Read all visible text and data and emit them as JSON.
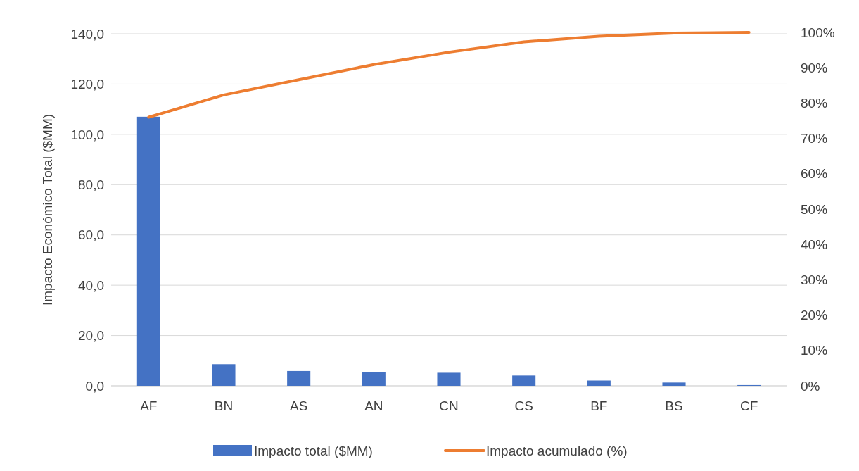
{
  "chart_data": {
    "type": "bar",
    "ylabel": "Impacto Económico Total ($MM)",
    "categories": [
      "AF",
      "BN",
      "AS",
      "AN",
      "CN",
      "CS",
      "BF",
      "BS",
      "CF"
    ],
    "series": [
      {
        "name": "Impacto total ($MM)",
        "color": "#4472c4",
        "values": [
          107,
          8.6,
          5.9,
          5.4,
          5.2,
          4.1,
          2.1,
          1.3,
          0.3
        ]
      },
      {
        "name": "Impacto acumulado (%)",
        "type": "line",
        "axis": "y2",
        "color": "#ed7d31",
        "values": [
          76,
          82.3,
          86.6,
          90.9,
          94.4,
          97.3,
          98.9,
          99.8,
          100
        ]
      }
    ],
    "ylim": [
      0,
      140
    ],
    "yticks": [
      {
        "value": 0,
        "label": "0,0"
      },
      {
        "value": 20,
        "label": "20,0"
      },
      {
        "value": 40,
        "label": "40,0"
      },
      {
        "value": 60,
        "label": "60,0"
      },
      {
        "value": 80,
        "label": "80,0"
      },
      {
        "value": 100,
        "label": "100,0"
      },
      {
        "value": 120,
        "label": "120,0"
      },
      {
        "value": 140,
        "label": "140,0"
      }
    ],
    "y2lim": [
      0,
      100
    ],
    "y2ticks": [
      {
        "value": 0,
        "label": "0%"
      },
      {
        "value": 10,
        "label": "10%"
      },
      {
        "value": 20,
        "label": "20%"
      },
      {
        "value": 30,
        "label": "30%"
      },
      {
        "value": 40,
        "label": "40%"
      },
      {
        "value": 50,
        "label": "50%"
      },
      {
        "value": 60,
        "label": "60%"
      },
      {
        "value": 70,
        "label": "70%"
      },
      {
        "value": 80,
        "label": "80%"
      },
      {
        "value": 90,
        "label": "90%"
      },
      {
        "value": 100,
        "label": "100%"
      }
    ],
    "grid": "y",
    "legend": "bottom"
  }
}
